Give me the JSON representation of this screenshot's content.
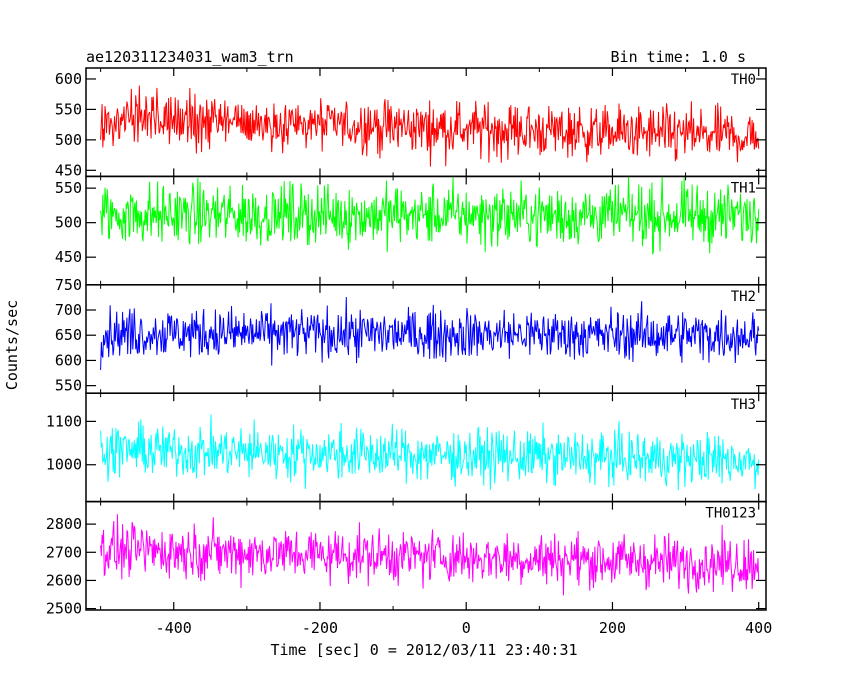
{
  "chart_data": {
    "type": "line",
    "title": "ae120311234031_wam3_trn",
    "bin_time_label": "Bin time: 1.0 s",
    "xlabel": "Time [sec] 0 = 2012/03/11 23:40:31",
    "ylabel": "Counts/sec",
    "xlim": [
      -520,
      410
    ],
    "x_range": [
      -500,
      400
    ],
    "x_step": 1,
    "xticks": [
      -400,
      -200,
      0,
      200,
      400
    ],
    "grid": false,
    "panels": [
      {
        "name": "TH0",
        "color": "#ff0000",
        "ylim": [
          440,
          618
        ],
        "yticks": [
          450,
          500,
          550,
          600
        ],
        "trend_start": 535,
        "trend_end": 505,
        "spread": 40
      },
      {
        "name": "TH1",
        "color": "#00ff00",
        "ylim": [
          410,
          567
        ],
        "yticks": [
          450,
          500,
          550
        ],
        "trend_start": 512,
        "trend_end": 510,
        "spread": 40
      },
      {
        "name": "TH2",
        "color": "#0000ff",
        "ylim": [
          535,
          750
        ],
        "yticks": [
          550,
          600,
          650,
          700,
          750
        ],
        "trend_start": 655,
        "trend_end": 650,
        "spread": 45
      },
      {
        "name": "TH3",
        "color": "#00ffff",
        "ylim": [
          915,
          1165
        ],
        "yticks": [
          1000,
          1100
        ],
        "trend_start": 1035,
        "trend_end": 1010,
        "spread": 55
      },
      {
        "name": "TH0123",
        "color": "#ff00ff",
        "ylim": [
          2495,
          2880
        ],
        "yticks": [
          2500,
          2600,
          2700,
          2800
        ],
        "trend_start": 2710,
        "trend_end": 2660,
        "spread": 85
      }
    ]
  }
}
